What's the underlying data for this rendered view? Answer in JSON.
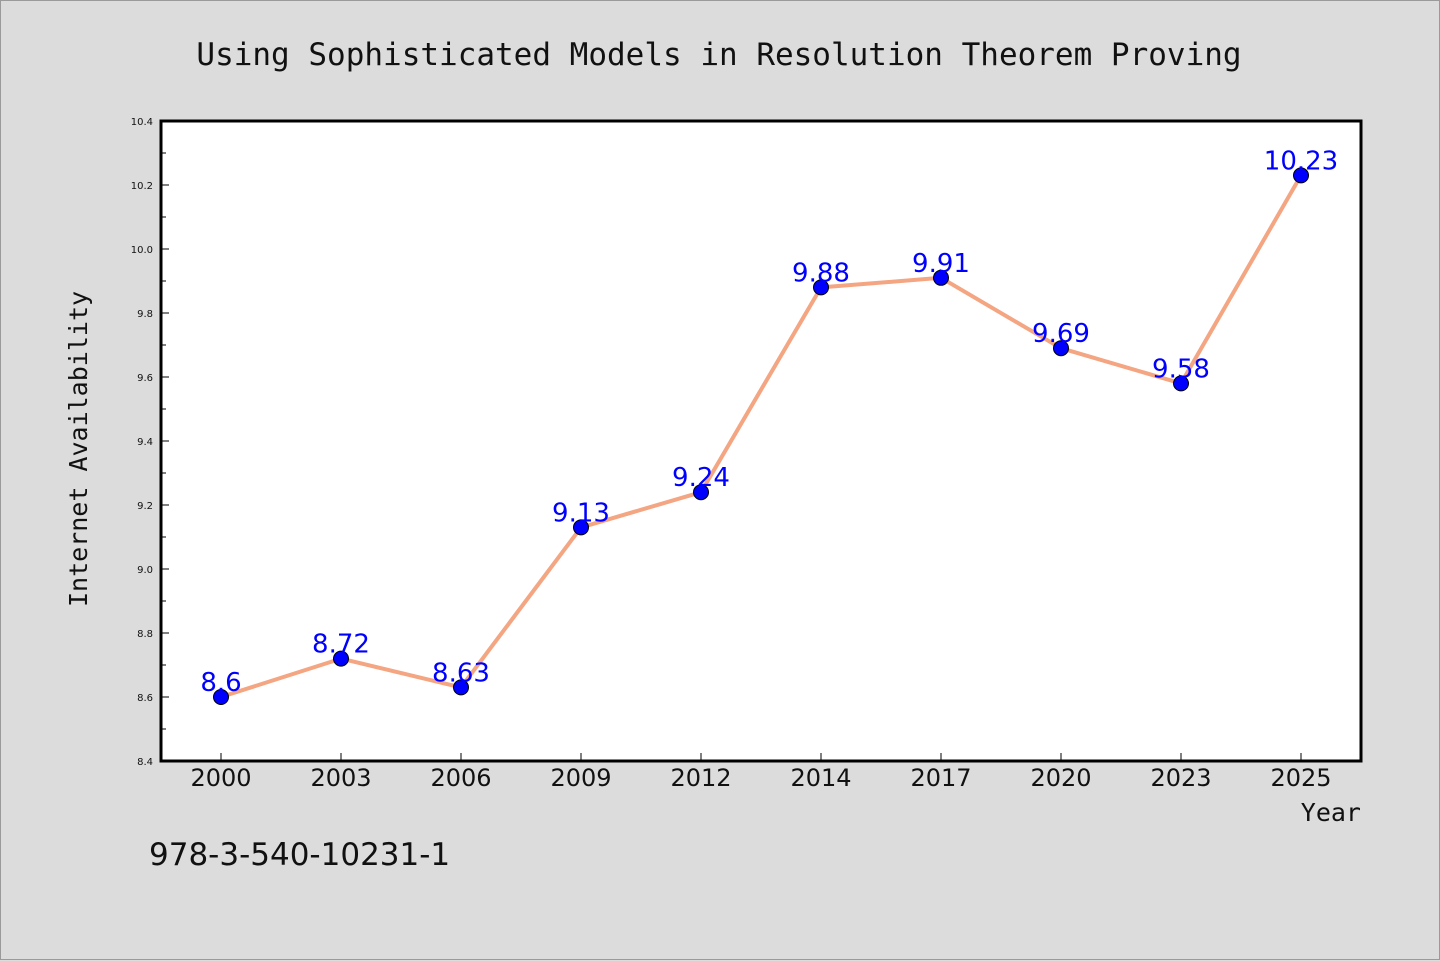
{
  "chart_data": {
    "type": "line",
    "title": "Using Sophisticated Models in Resolution Theorem Proving",
    "xlabel": "Year",
    "ylabel": "Internet Availability",
    "categories": [
      "2000",
      "2003",
      "2006",
      "2009",
      "2012",
      "2014",
      "2017",
      "2020",
      "2023",
      "2025"
    ],
    "series": [
      {
        "values": [
          8.6,
          8.72,
          8.63,
          9.13,
          9.24,
          9.88,
          9.91,
          9.69,
          9.58,
          10.23
        ],
        "data_labels": [
          "8.6",
          "8.72",
          "8.63",
          "9.13",
          "9.24",
          "9.88",
          "9.91",
          "9.69",
          "9.58",
          "10.23"
        ],
        "line_color": "#f4a582",
        "marker_color": "#0000ff",
        "label_color": "#0000ff"
      }
    ],
    "ylim": [
      8.4,
      10.4
    ],
    "yticks": [
      "8.4",
      "8.6",
      "8.8",
      "9.0",
      "9.2",
      "9.4",
      "9.6",
      "9.8",
      "10.0",
      "10.2",
      "10.4"
    ],
    "grid": false,
    "legend": "none",
    "background": "#dcdcdc",
    "plot_background": "#ffffff"
  },
  "footnote": "978-3-540-10231-1"
}
